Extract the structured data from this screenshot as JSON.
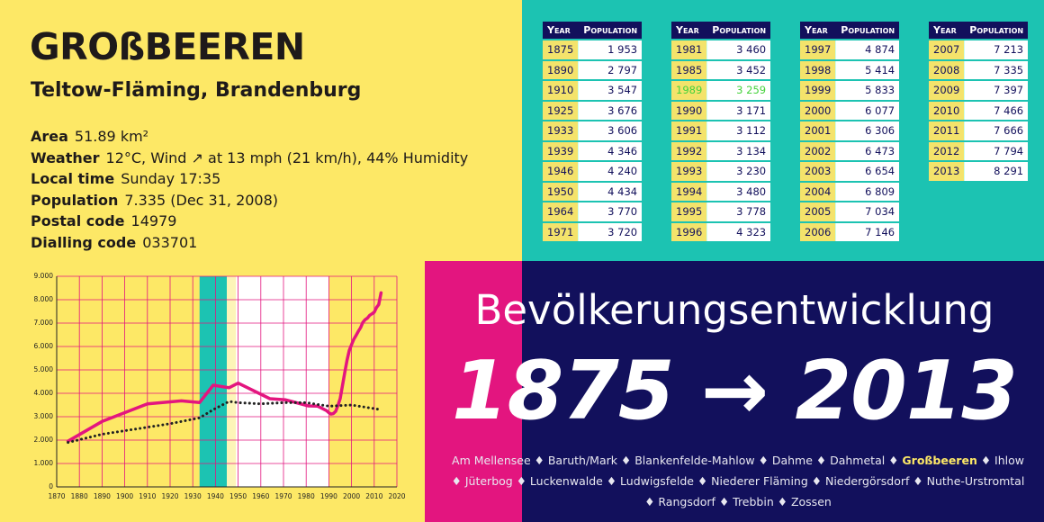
{
  "header": {
    "title": "GROßBEEREN",
    "subtitle": "Teltow-Fläming, Brandenburg"
  },
  "info": [
    {
      "label": "Area",
      "value": "51.89 km²"
    },
    {
      "label": "Weather",
      "value": "12°C, Wind ↗ at 13 mph (21 km/h), 44% Humidity"
    },
    {
      "label": "Local time",
      "value": "Sunday 17:35"
    },
    {
      "label": "Population",
      "value": "7.335 (Dec 31, 2008)"
    },
    {
      "label": "Postal code",
      "value": "14979"
    },
    {
      "label": "Dialling code",
      "value": "033701"
    }
  ],
  "tables": {
    "headers": [
      "Year",
      "Population"
    ],
    "highlight": {
      "table": 1,
      "row": 2
    },
    "columns": [
      [
        [
          "1875",
          "1 953"
        ],
        [
          "1890",
          "2 797"
        ],
        [
          "1910",
          "3 547"
        ],
        [
          "1925",
          "3 676"
        ],
        [
          "1933",
          "3 606"
        ],
        [
          "1939",
          "4 346"
        ],
        [
          "1946",
          "4 240"
        ],
        [
          "1950",
          "4 434"
        ],
        [
          "1964",
          "3 770"
        ],
        [
          "1971",
          "3 720"
        ]
      ],
      [
        [
          "1981",
          "3 460"
        ],
        [
          "1985",
          "3 452"
        ],
        [
          "1989",
          "3 259"
        ],
        [
          "1990",
          "3 171"
        ],
        [
          "1991",
          "3 112"
        ],
        [
          "1992",
          "3 134"
        ],
        [
          "1993",
          "3 230"
        ],
        [
          "1994",
          "3 480"
        ],
        [
          "1995",
          "3 778"
        ],
        [
          "1996",
          "4 323"
        ]
      ],
      [
        [
          "1997",
          "4 874"
        ],
        [
          "1998",
          "5 414"
        ],
        [
          "1999",
          "5 833"
        ],
        [
          "2000",
          "6 077"
        ],
        [
          "2001",
          "6 306"
        ],
        [
          "2002",
          "6 473"
        ],
        [
          "2003",
          "6 654"
        ],
        [
          "2004",
          "6 809"
        ],
        [
          "2005",
          "7 034"
        ],
        [
          "2006",
          "7 146"
        ]
      ],
      [
        [
          "2007",
          "7 213"
        ],
        [
          "2008",
          "7 335"
        ],
        [
          "2009",
          "7 397"
        ],
        [
          "2010",
          "7 466"
        ],
        [
          "2011",
          "7 666"
        ],
        [
          "2012",
          "7 794"
        ],
        [
          "2013",
          "8 291"
        ]
      ]
    ]
  },
  "chart_data": {
    "type": "line",
    "xlim": [
      1870,
      2020
    ],
    "xticks": [
      1870,
      1880,
      1890,
      1900,
      1910,
      1920,
      1930,
      1940,
      1950,
      1960,
      1970,
      1980,
      1990,
      2000,
      2010,
      2020
    ],
    "ylim": [
      0,
      9000
    ],
    "yticks": [
      0,
      {
        "value": 1000,
        "label": "1.000"
      },
      {
        "value": 2000,
        "label": "2.000"
      },
      {
        "value": 3000,
        "label": "3.000"
      },
      {
        "value": 4000,
        "label": "4.000"
      },
      {
        "value": 5000,
        "label": "5.000"
      },
      {
        "value": 6000,
        "label": "6.000"
      },
      {
        "value": 7000,
        "label": "7.000"
      },
      {
        "value": 8000,
        "label": "8.000"
      },
      {
        "value": 9000,
        "label": "9.000"
      }
    ],
    "grid": true,
    "bands": [
      {
        "from": 1933,
        "to": 1945,
        "color": "#1cc3b2"
      },
      {
        "from": 1945,
        "to": 1949,
        "color": "#fdf5b8"
      },
      {
        "from": 1949,
        "to": 1990,
        "color": "#ffffff"
      }
    ],
    "series": [
      {
        "color": "#e3157f",
        "style": "solid",
        "x": [
          1875,
          1890,
          1910,
          1925,
          1933,
          1939,
          1946,
          1950,
          1964,
          1971,
          1981,
          1985,
          1989,
          1990,
          1991,
          1992,
          1993,
          1994,
          1995,
          1996,
          1997,
          1998,
          1999,
          2000,
          2001,
          2002,
          2003,
          2004,
          2005,
          2006,
          2007,
          2008,
          2009,
          2010,
          2011,
          2012,
          2013
        ],
        "values": [
          1953,
          2797,
          3547,
          3676,
          3606,
          4346,
          4240,
          4434,
          3770,
          3720,
          3460,
          3452,
          3259,
          3171,
          3112,
          3134,
          3230,
          3480,
          3778,
          4323,
          4874,
          5414,
          5833,
          6077,
          6306,
          6473,
          6654,
          6809,
          7034,
          7146,
          7213,
          7335,
          7397,
          7466,
          7666,
          7794,
          8291
        ]
      },
      {
        "color": "#222222",
        "style": "dotted",
        "x": [
          1875,
          1890,
          1900,
          1910,
          1920,
          1933,
          1939,
          1946,
          1950,
          1960,
          1970,
          1980,
          1990,
          2000,
          2013
        ],
        "values": [
          1900,
          2250,
          2400,
          2550,
          2700,
          2950,
          3300,
          3650,
          3600,
          3550,
          3600,
          3600,
          3450,
          3500,
          3300
        ]
      }
    ]
  },
  "banner": {
    "title": "Bevölkerungsentwicklung",
    "range": "1875 → 2013",
    "separator": "♦",
    "highlight_index": 5,
    "towns": [
      "Am Mellensee",
      "Baruth/Mark",
      "Blankenfelde-Mahlow",
      "Dahme",
      "Dahmetal",
      "Großbeeren",
      "Ihlow",
      "Jüterbog",
      "Luckenwalde",
      "Ludwigsfelde",
      "Niederer Fläming",
      "Niedergörsdorf",
      "Nuthe-Urstromtal",
      "Rangsdorf",
      "Trebbin",
      "Zossen"
    ]
  }
}
